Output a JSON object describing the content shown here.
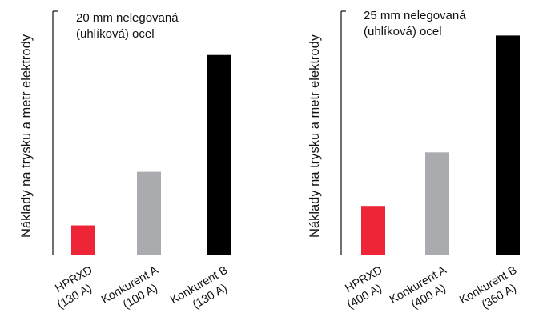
{
  "colors": {
    "red": "#ee2536",
    "gray": "#a9abae",
    "black": "#000000",
    "axis": "#111111"
  },
  "chart_data": [
    {
      "type": "bar",
      "title": "20 mm nelegovaná (uhlíková) ocel",
      "title_lines": [
        "20 mm nelegovaná",
        "(uhlíková) ocel"
      ],
      "ylabel": "Náklady na trysku a metr elektrody",
      "xlabel": "",
      "ylim": [
        0,
        100
      ],
      "grid": false,
      "categories": [
        "HPRXD (130 A)",
        "Konkurent A (100 A)",
        "Konkurent B (130 A)"
      ],
      "category_lines": [
        [
          "HPRXD",
          "(130 A)"
        ],
        [
          "Konkurent A",
          "(100 A)"
        ],
        [
          "Konkurent B",
          "(130 A)"
        ]
      ],
      "values": [
        12,
        34,
        82
      ],
      "bar_colors": [
        "#ee2536",
        "#a9abae",
        "#000000"
      ]
    },
    {
      "type": "bar",
      "title": "25 mm nelegovaná (uhlíková) ocel",
      "title_lines": [
        "25 mm nelegovaná",
        "(uhlíková) ocel"
      ],
      "ylabel": "Náklady na trysku a metr elektrody",
      "xlabel": "",
      "ylim": [
        0,
        100
      ],
      "grid": false,
      "categories": [
        "HPRXD (400 A)",
        "Konkurent A (400 A)",
        "Konkurent B (360 A)"
      ],
      "category_lines": [
        [
          "HPRXD",
          "(400 A)"
        ],
        [
          "Konkurent A",
          "(400 A)"
        ],
        [
          "Konkurent B",
          "(360 A)"
        ]
      ],
      "values": [
        20,
        42,
        90
      ],
      "bar_colors": [
        "#ee2536",
        "#a9abae",
        "#000000"
      ]
    }
  ]
}
